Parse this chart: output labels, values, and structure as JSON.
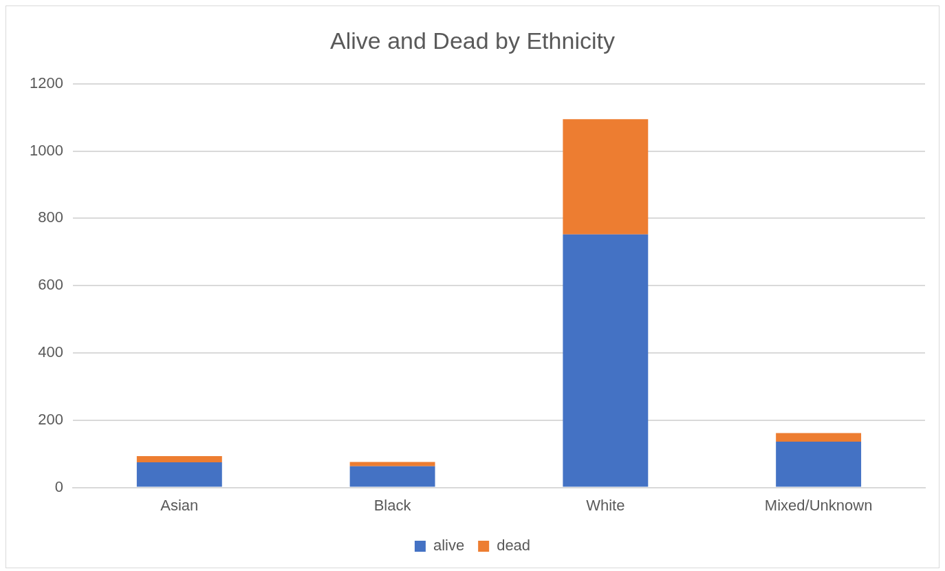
{
  "chart_data": {
    "type": "bar",
    "title": "Alive and Dead by Ethnicity",
    "categories": [
      "Asian",
      "Black",
      "White",
      "Mixed/Unknown"
    ],
    "stacked": true,
    "series": [
      {
        "name": "alive",
        "color": "#4472c4",
        "values": [
          75,
          63,
          752,
          136
        ]
      },
      {
        "name": "dead",
        "color": "#ed7d31",
        "values": [
          18,
          13,
          343,
          26
        ]
      }
    ],
    "ylim": [
      0,
      1200
    ],
    "yticks": [
      0,
      200,
      400,
      600,
      800,
      1000,
      1200
    ],
    "grid": "y",
    "legend": "bottom"
  }
}
